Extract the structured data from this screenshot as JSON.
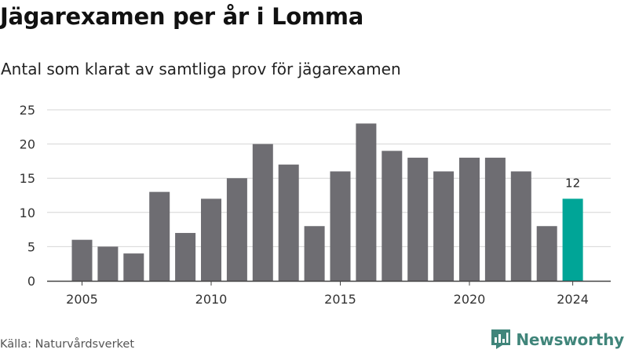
{
  "header": {
    "title": "Jägarexamen per år i Lomma",
    "subtitle": "Antal som klarat av samtliga prov för jägarexamen"
  },
  "footer": {
    "source": "Källa: Naturvårdsverket",
    "brand": "Newsworthy"
  },
  "colors": {
    "bar": "#6e6d72",
    "highlight": "#00a597",
    "grid": "#d6d6d6",
    "brand": "#40857a"
  },
  "icons": {
    "brand_logo": "bar-chart-icon"
  },
  "chart_data": {
    "type": "bar",
    "x": [
      2005,
      2006,
      2007,
      2008,
      2009,
      2010,
      2011,
      2012,
      2013,
      2014,
      2015,
      2016,
      2017,
      2018,
      2019,
      2020,
      2021,
      2022,
      2023,
      2024
    ],
    "values": [
      6,
      5,
      4,
      13,
      7,
      12,
      15,
      20,
      17,
      8,
      16,
      23,
      19,
      18,
      16,
      18,
      18,
      16,
      8,
      12
    ],
    "x_tick_labels": [
      "2005",
      "2010",
      "2015",
      "2020",
      "2024"
    ],
    "y_ticks": [
      0,
      5,
      10,
      15,
      20,
      25
    ],
    "ylim": [
      0,
      25
    ],
    "highlight": {
      "x": 2024,
      "label": "12"
    },
    "grid": true
  }
}
